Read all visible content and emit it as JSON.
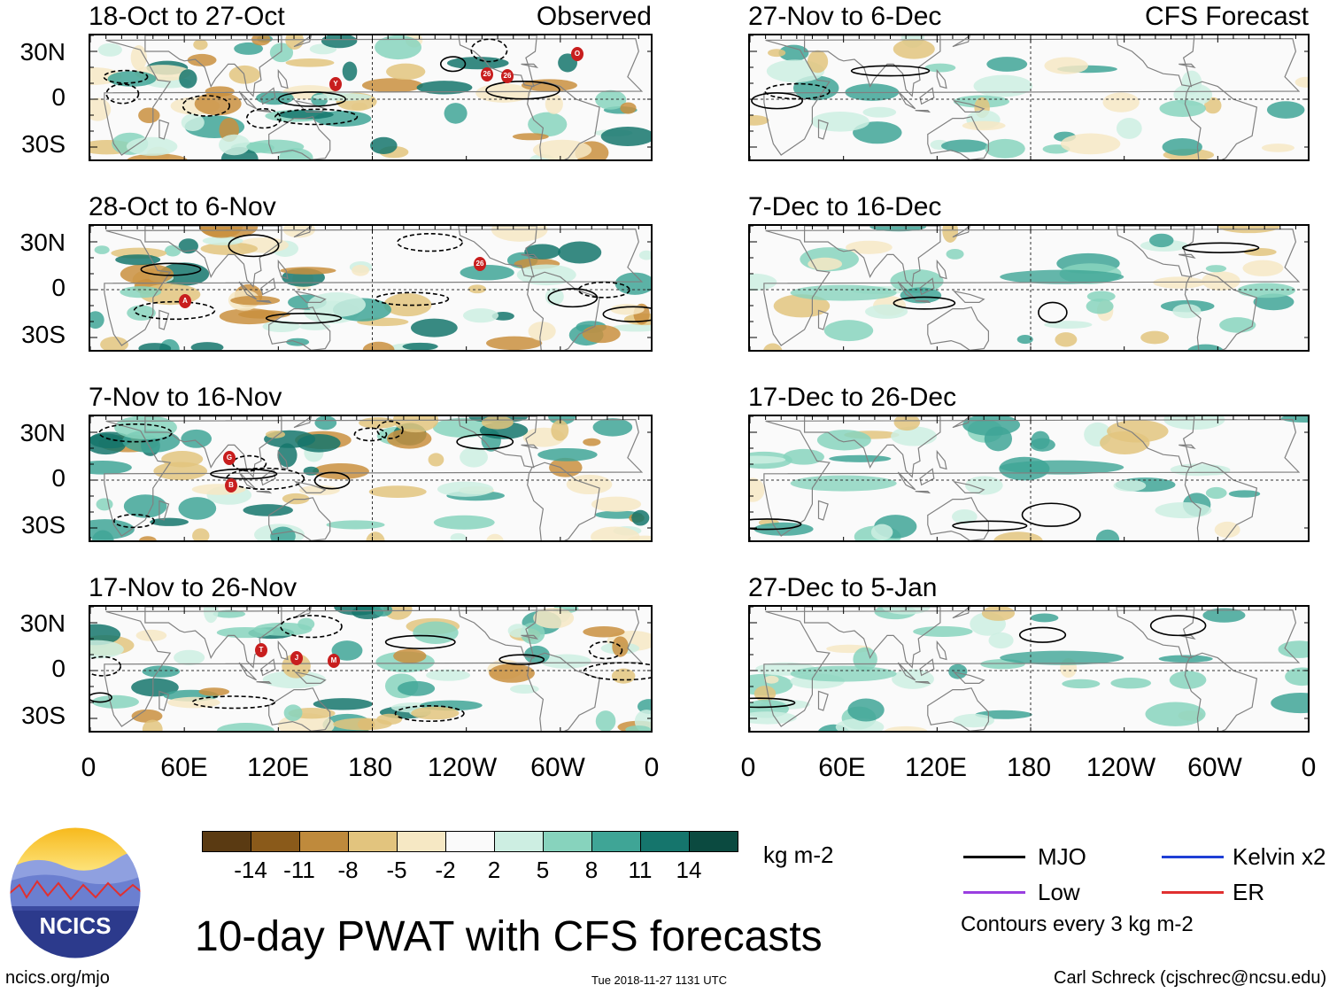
{
  "header": {
    "observed_label": "Observed",
    "forecast_label": "CFS Forecast"
  },
  "panels": {
    "left": [
      {
        "title": "18-Oct to 27-Oct",
        "markers": [
          "O",
          "Y",
          "26",
          "26"
        ]
      },
      {
        "title": "28-Oct to 6-Nov",
        "markers": [
          "A",
          "26"
        ]
      },
      {
        "title": "7-Nov to 16-Nov",
        "markers": [
          "G",
          "B"
        ]
      },
      {
        "title": "17-Nov to 26-Nov",
        "markers": [
          "T",
          "J",
          "M"
        ]
      }
    ],
    "right": [
      {
        "title": "27-Nov to 6-Dec"
      },
      {
        "title": "7-Dec to 16-Dec"
      },
      {
        "title": "17-Dec to 26-Dec"
      },
      {
        "title": "27-Dec to 5-Jan"
      }
    ]
  },
  "axes": {
    "lat_labels": [
      "30N",
      "0",
      "30S"
    ],
    "lon_labels": [
      "0",
      "60E",
      "120E",
      "180",
      "120W",
      "60W",
      "0"
    ]
  },
  "colorbar": {
    "colors": [
      "#5a3a12",
      "#8a5a1a",
      "#bf8a3c",
      "#e2c47e",
      "#f6e8c4",
      "#fafafa",
      "#cdeee2",
      "#87d3bd",
      "#3fa596",
      "#15756c",
      "#0b4a40"
    ],
    "ticks": [
      "-14",
      "-11",
      "-8",
      "-5",
      "-2",
      "2",
      "5",
      "8",
      "11",
      "14"
    ],
    "units": "kg m-2"
  },
  "title": "10-day PWAT with CFS forecasts",
  "legend": {
    "items": [
      {
        "label": "MJO",
        "color": "#000000"
      },
      {
        "label": "Kelvin x2",
        "color": "#1f3fd6"
      },
      {
        "label": "Low",
        "color": "#9a3fe0"
      },
      {
        "label": "ER",
        "color": "#e03030"
      }
    ],
    "note": "Contours every 3 kg m-2"
  },
  "logo": {
    "text": "NCICS"
  },
  "footer": {
    "url": "ncics.org/mjo",
    "timestamp": "Tue 2018-11-27 1131 UTC",
    "author": "Carl Schreck (cjschrec@ncsu.edu)"
  }
}
